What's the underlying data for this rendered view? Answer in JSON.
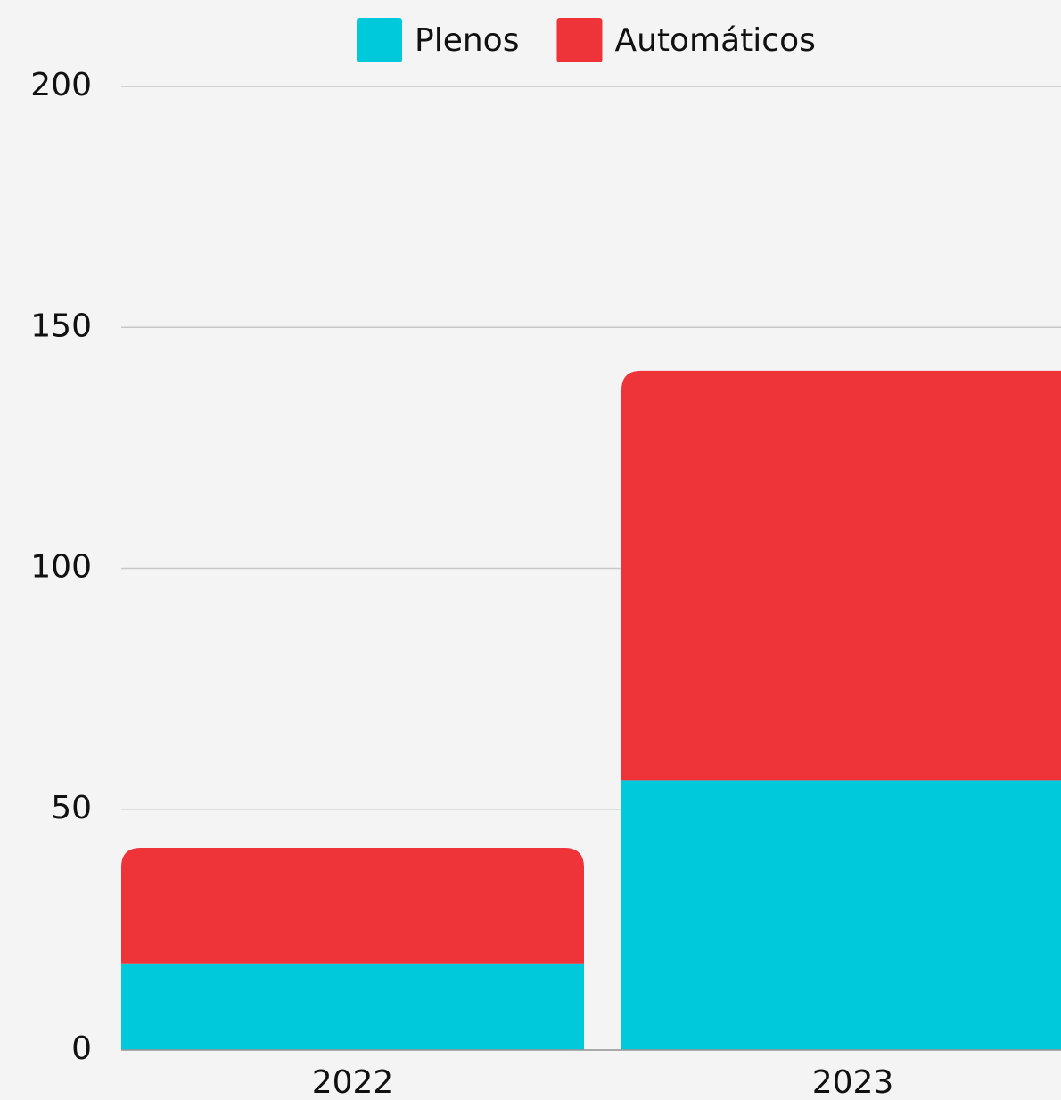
{
  "chart_data": {
    "type": "stacked_bar",
    "categories": [
      "2022",
      "2023"
    ],
    "series": [
      {
        "name": "Plenos",
        "color": "#00c9db",
        "values": [
          18,
          56
        ]
      },
      {
        "name": "Automáticos",
        "color": "#ee3439",
        "values": [
          24,
          85
        ]
      }
    ],
    "ylim": [
      0,
      200
    ],
    "yticks": [
      0,
      50,
      100,
      150,
      200
    ],
    "grid": true,
    "legend": "top"
  }
}
